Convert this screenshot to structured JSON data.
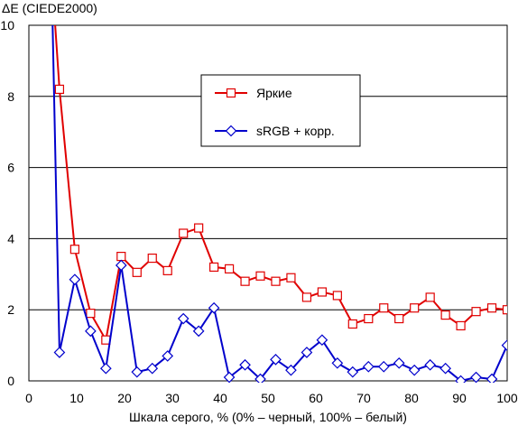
{
  "chart_data": {
    "type": "line",
    "ylabel": "ΔE (CIEDE2000)",
    "xlabel": "Шкала серого, % (0% – черный, 100% – белый)",
    "xlim": [
      0,
      100
    ],
    "ylim": [
      0,
      10
    ],
    "xticks": [
      0,
      10,
      20,
      30,
      40,
      50,
      60,
      70,
      80,
      90,
      100
    ],
    "yticks": [
      0,
      2,
      4,
      6,
      8,
      10
    ],
    "grid": "horizontal",
    "legend_position": "center-right",
    "series": [
      {
        "name": "Яркие",
        "color": "#e00000",
        "marker": "square",
        "x": [
          5.3,
          6.4,
          9.6,
          12.9,
          16.1,
          19.3,
          22.6,
          25.8,
          29.0,
          32.3,
          35.5,
          38.7,
          41.9,
          45.2,
          48.4,
          51.6,
          54.8,
          58.1,
          61.3,
          64.5,
          67.7,
          71.0,
          74.2,
          77.4,
          80.6,
          83.9,
          87.1,
          90.3,
          93.5,
          96.8,
          100
        ],
        "y": [
          10.4,
          8.2,
          3.7,
          1.9,
          1.15,
          3.5,
          3.05,
          3.45,
          3.1,
          4.15,
          4.3,
          3.2,
          3.15,
          2.8,
          2.95,
          2.8,
          2.9,
          2.35,
          2.5,
          2.4,
          1.6,
          1.75,
          2.05,
          1.75,
          2.05,
          2.35,
          1.85,
          1.55,
          1.95,
          2.05,
          2.0
        ]
      },
      {
        "name": "sRGB + корр.",
        "color": "#0000cc",
        "marker": "diamond",
        "x": [
          4.9,
          6.4,
          9.6,
          12.9,
          16.1,
          19.3,
          22.6,
          25.8,
          29.0,
          32.3,
          35.5,
          38.7,
          41.9,
          45.2,
          48.4,
          51.6,
          54.8,
          58.1,
          61.3,
          64.5,
          67.7,
          71.0,
          74.2,
          77.4,
          80.6,
          83.9,
          87.1,
          90.3,
          93.5,
          96.8,
          100
        ],
        "y": [
          10.4,
          0.8,
          2.85,
          1.4,
          0.35,
          3.25,
          0.25,
          0.35,
          0.7,
          1.75,
          1.4,
          2.05,
          0.1,
          0.45,
          0.05,
          0.6,
          0.3,
          0.8,
          1.15,
          0.5,
          0.25,
          0.4,
          0.4,
          0.5,
          0.3,
          0.45,
          0.35,
          0.0,
          0.1,
          0.05,
          1.0
        ]
      }
    ]
  }
}
